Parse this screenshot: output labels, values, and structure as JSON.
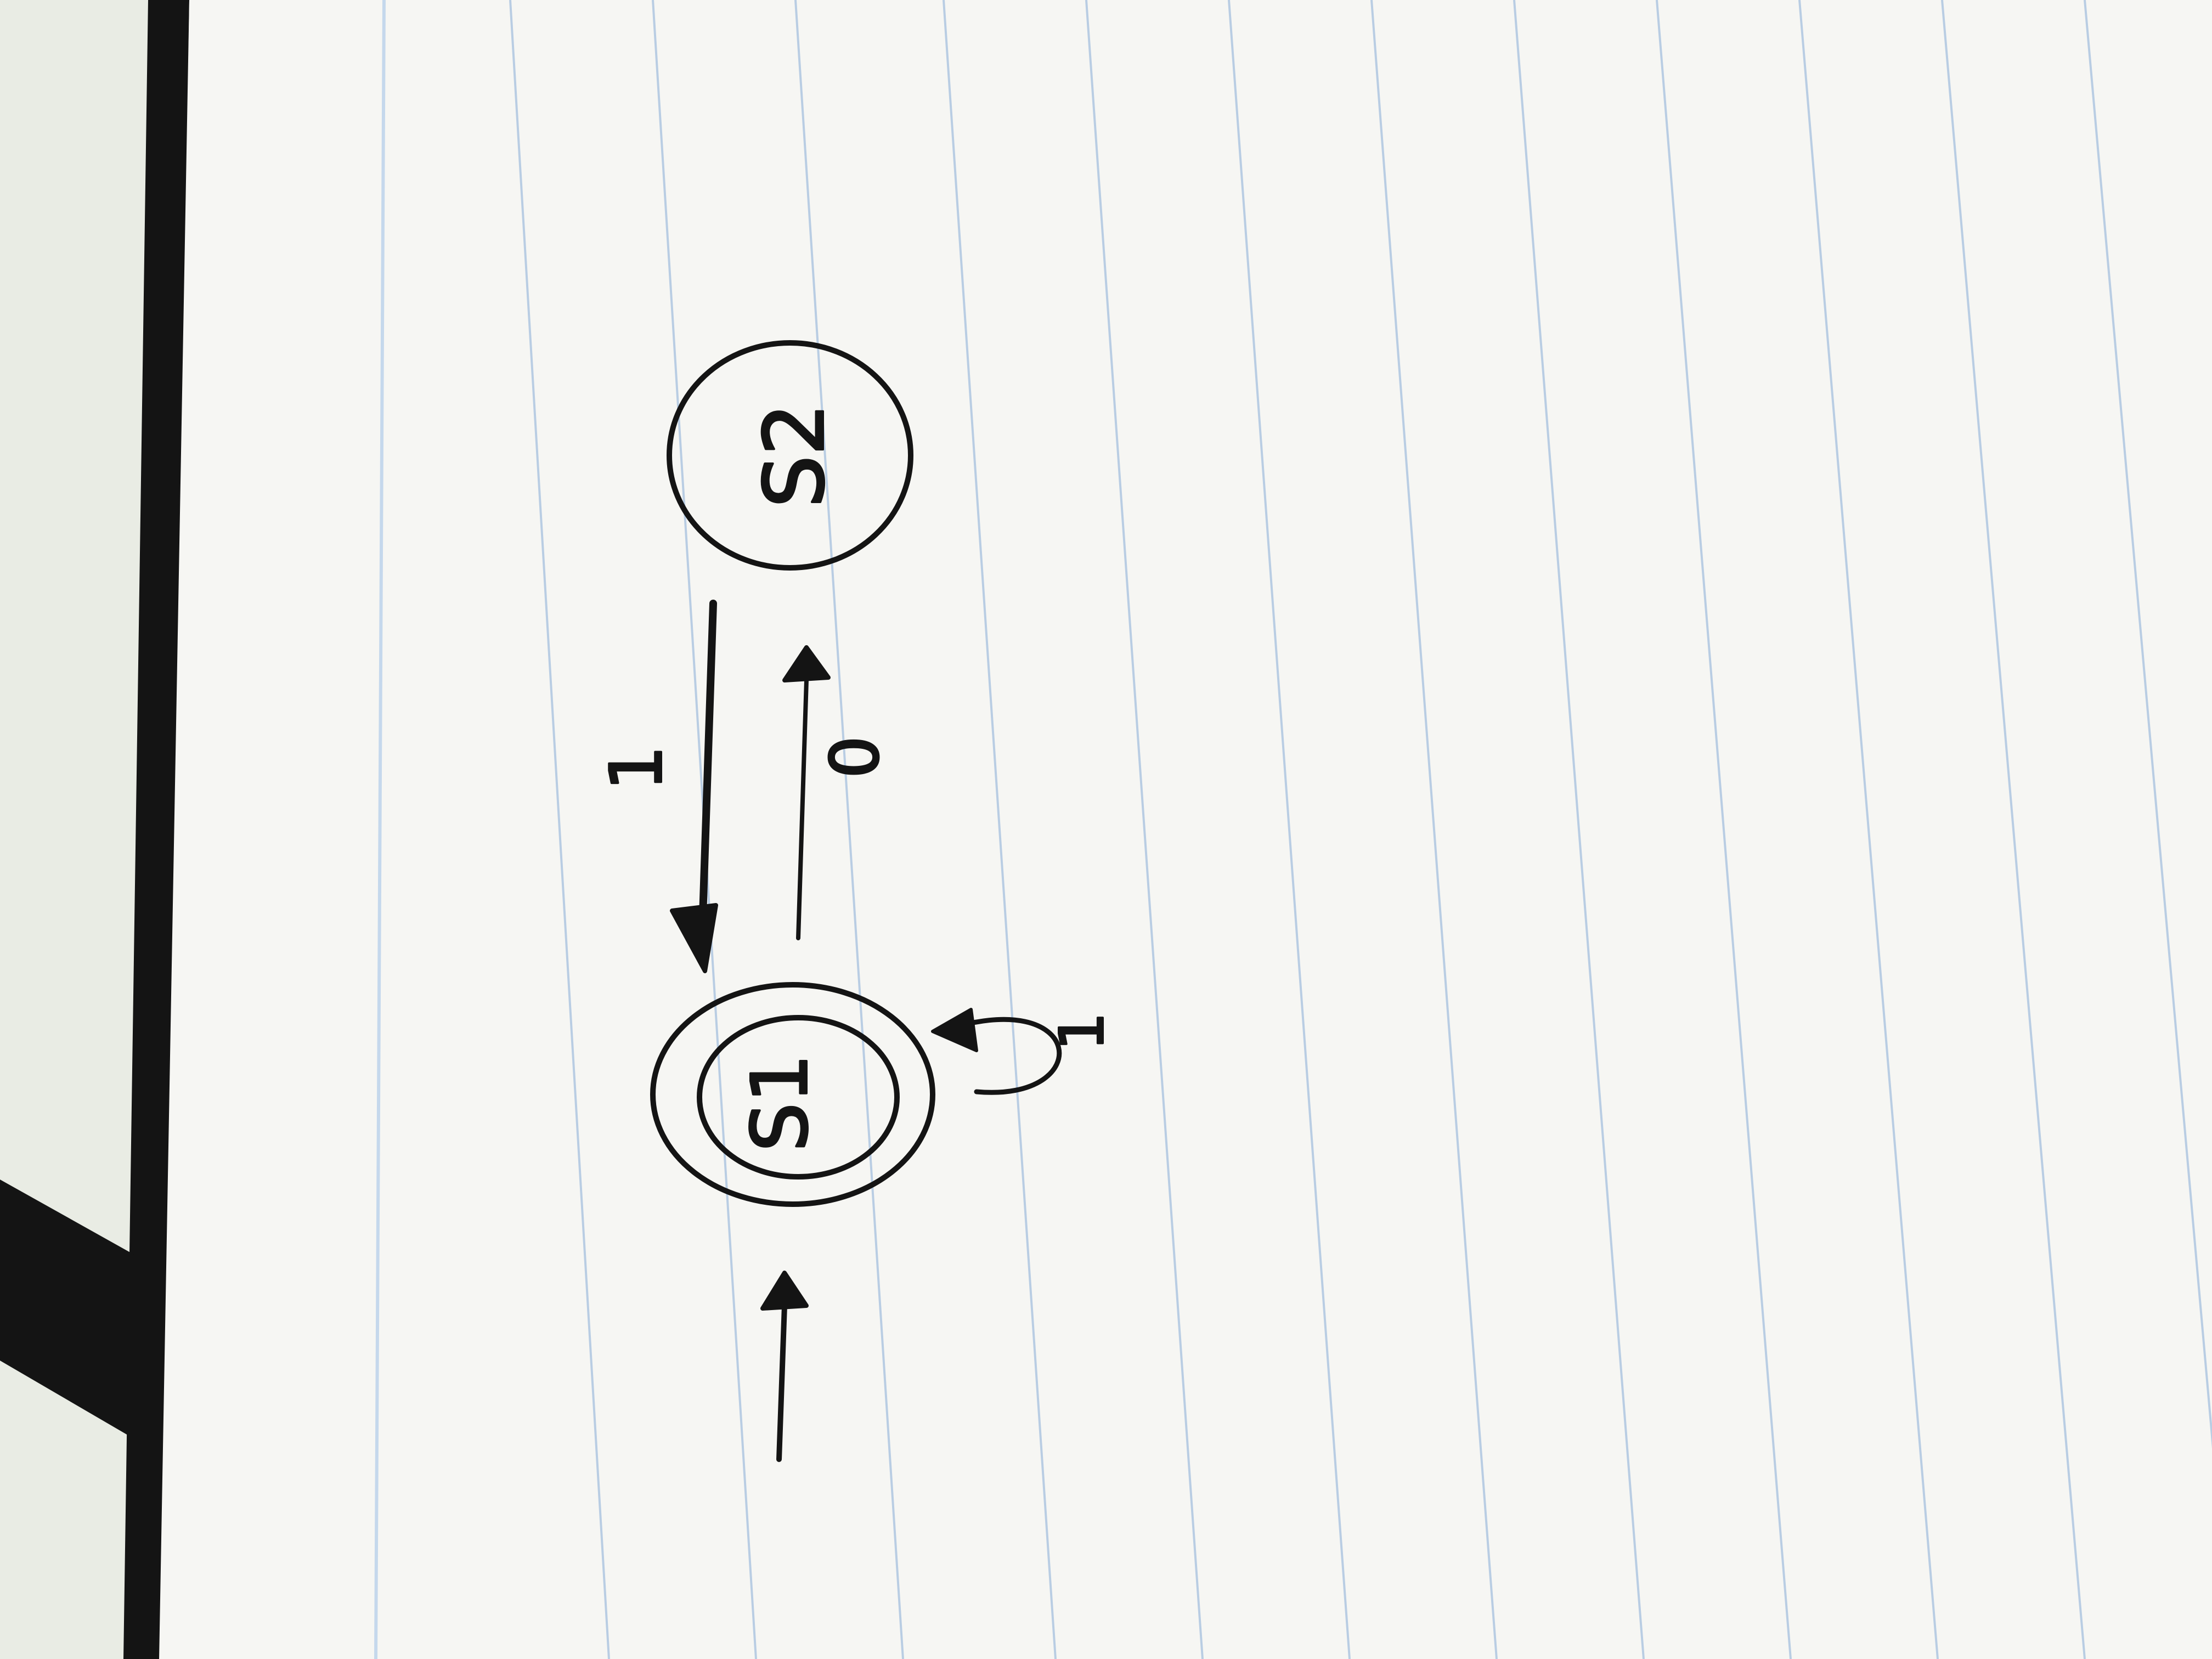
{
  "diagram": {
    "type": "finite-automaton",
    "states": [
      {
        "id": "s1",
        "label": "S1",
        "accepting": true,
        "start": true
      },
      {
        "id": "s2",
        "label": "S2",
        "accepting": false,
        "start": false
      }
    ],
    "transitions": [
      {
        "from": "s2",
        "to": "s1",
        "label": "1"
      },
      {
        "from": "s1",
        "to": "s2",
        "label": "0"
      },
      {
        "from": "s1",
        "to": "s1",
        "label": "1"
      }
    ]
  },
  "colors": {
    "ink": "#141414",
    "paper": "#f6f6f3",
    "ruled_line": "#b9cde3",
    "margin_line": "#c5d8ec",
    "notebook_edge": "#141414",
    "background": "#e9ece4"
  }
}
